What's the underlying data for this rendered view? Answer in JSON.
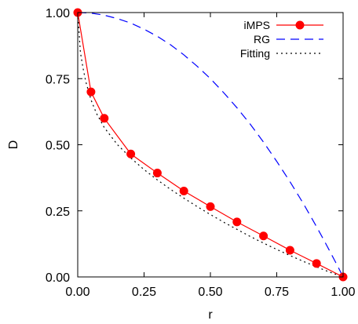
{
  "chart_data": {
    "type": "line",
    "xlabel": "r",
    "ylabel": "D",
    "xlim": [
      0,
      1
    ],
    "ylim": [
      0,
      1
    ],
    "xticks": [
      "0.00",
      "0.25",
      "0.50",
      "0.75",
      "1.00"
    ],
    "yticks": [
      "0.00",
      "0.25",
      "0.50",
      "0.75",
      "1.00"
    ],
    "legend_position": "top-right",
    "grid": false,
    "series": [
      {
        "name": "iMPS",
        "style": "solid-with-markers",
        "color": "#ff0000",
        "x": [
          0.0,
          0.05,
          0.1,
          0.2,
          0.3,
          0.4,
          0.5,
          0.6,
          0.7,
          0.8,
          0.9,
          1.0
        ],
        "y": [
          1.0,
          0.7,
          0.6,
          0.465,
          0.393,
          0.325,
          0.266,
          0.208,
          0.155,
          0.101,
          0.051,
          0.0
        ]
      },
      {
        "name": "RG",
        "style": "dashed",
        "color": "#0000ff",
        "x": [
          0.0,
          0.05,
          0.1,
          0.15,
          0.2,
          0.25,
          0.3,
          0.35,
          0.4,
          0.45,
          0.5,
          0.55,
          0.6,
          0.65,
          0.7,
          0.75,
          0.8,
          0.85,
          0.9,
          0.93,
          0.96,
          0.98,
          0.99,
          1.0
        ],
        "y": [
          1.0,
          0.998,
          0.99,
          0.977,
          0.96,
          0.937,
          0.91,
          0.878,
          0.84,
          0.797,
          0.75,
          0.697,
          0.64,
          0.578,
          0.51,
          0.437,
          0.36,
          0.278,
          0.19,
          0.135,
          0.078,
          0.04,
          0.02,
          0.0
        ]
      },
      {
        "name": "Fitting",
        "style": "dotted",
        "color": "#000000",
        "x": [
          0.0,
          0.01,
          0.02,
          0.03,
          0.05,
          0.07,
          0.1,
          0.15,
          0.2,
          0.25,
          0.3,
          0.35,
          0.4,
          0.45,
          0.5,
          0.55,
          0.6,
          0.65,
          0.7,
          0.75,
          0.8,
          0.85,
          0.9,
          0.95,
          1.0
        ],
        "y": [
          1.0,
          0.85,
          0.79,
          0.74,
          0.67,
          0.62,
          0.565,
          0.5,
          0.45,
          0.406,
          0.367,
          0.331,
          0.298,
          0.266,
          0.236,
          0.207,
          0.18,
          0.153,
          0.128,
          0.104,
          0.081,
          0.059,
          0.038,
          0.018,
          0.0
        ]
      }
    ]
  }
}
